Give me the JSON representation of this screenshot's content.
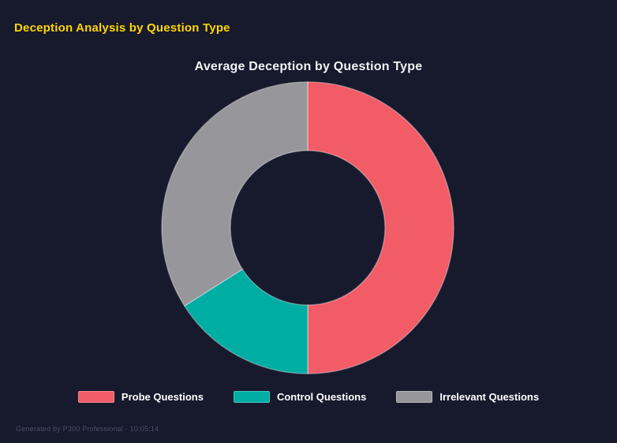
{
  "page": {
    "title": "Deception Analysis by Question Type",
    "title_color": "#FFD600",
    "background_color": "#171A2D"
  },
  "chart_data": {
    "type": "pie",
    "subtype": "doughnut",
    "title": "Average Deception by Question Type",
    "categories": [
      "Probe Questions",
      "Control Questions",
      "Irrelevant Questions"
    ],
    "values": [
      50,
      16,
      34
    ],
    "unit": "percent",
    "colors": [
      "#F15C66",
      "#00ADA2",
      "#97969B"
    ],
    "segment_border_color": "rgba(255,255,255,0.35)",
    "start_angle_deg": 0,
    "direction": "clockwise",
    "cutout_ratio": 0.53,
    "legend_position": "bottom",
    "hole_color": "#171A2D"
  },
  "footer": {
    "text": "Generated by P300 Professional - 10:05:14"
  }
}
